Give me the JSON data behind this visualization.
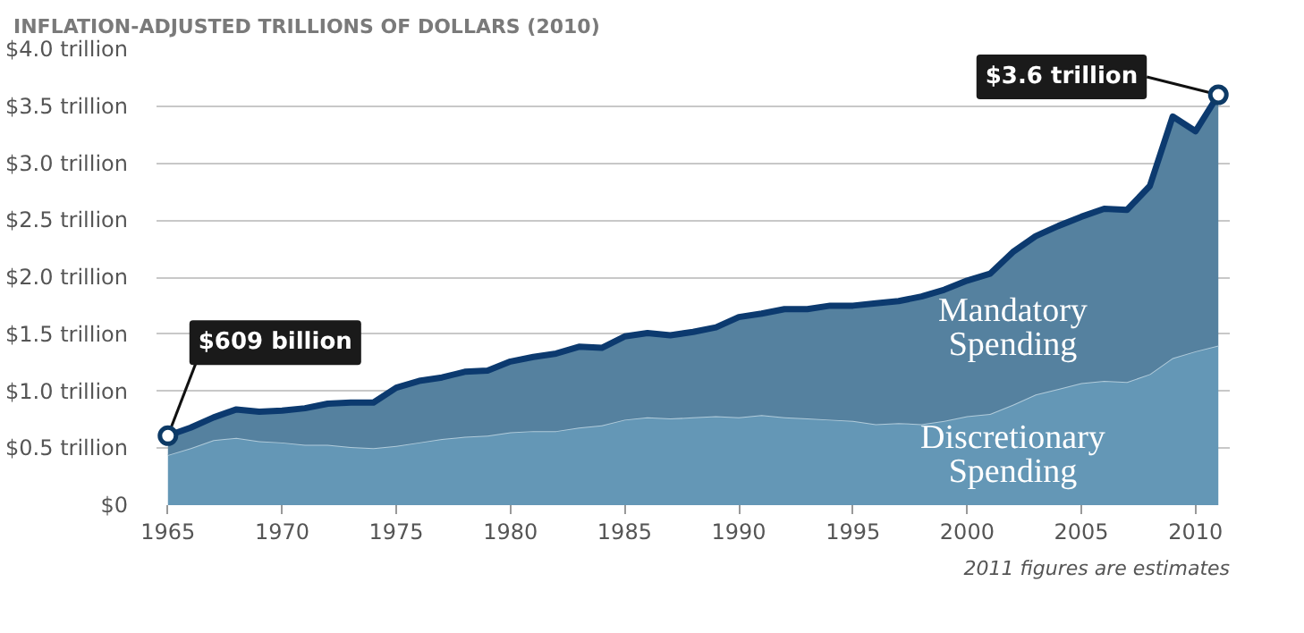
{
  "chart_data": {
    "type": "area",
    "stacked": true,
    "title": "INFLATION-ADJUSTED TRILLIONS OF DOLLARS (2010)",
    "x": [
      1965,
      1966,
      1967,
      1968,
      1969,
      1970,
      1971,
      1972,
      1973,
      1974,
      1975,
      1976,
      1977,
      1978,
      1979,
      1980,
      1981,
      1982,
      1983,
      1984,
      1985,
      1986,
      1987,
      1988,
      1989,
      1990,
      1991,
      1992,
      1993,
      1994,
      1995,
      1996,
      1997,
      1998,
      1999,
      2000,
      2001,
      2002,
      2003,
      2004,
      2005,
      2006,
      2007,
      2008,
      2009,
      2010,
      2011
    ],
    "series": [
      {
        "name": "Discretionary\nSpending",
        "color": "#6497b6",
        "values": [
          0.44,
          0.5,
          0.57,
          0.59,
          0.56,
          0.55,
          0.53,
          0.53,
          0.51,
          0.5,
          0.52,
          0.55,
          0.58,
          0.6,
          0.61,
          0.64,
          0.65,
          0.65,
          0.68,
          0.7,
          0.75,
          0.77,
          0.76,
          0.77,
          0.78,
          0.77,
          0.79,
          0.77,
          0.76,
          0.75,
          0.74,
          0.71,
          0.72,
          0.71,
          0.74,
          0.78,
          0.8,
          0.88,
          0.97,
          1.02,
          1.07,
          1.09,
          1.08,
          1.15,
          1.29,
          1.35,
          1.4
        ]
      },
      {
        "name": "Mandatory\nSpending",
        "color": "#55819f",
        "values": [
          0.17,
          0.18,
          0.2,
          0.25,
          0.26,
          0.28,
          0.32,
          0.36,
          0.39,
          0.4,
          0.51,
          0.54,
          0.54,
          0.57,
          0.57,
          0.62,
          0.65,
          0.68,
          0.71,
          0.68,
          0.73,
          0.74,
          0.73,
          0.75,
          0.78,
          0.88,
          0.89,
          0.95,
          0.96,
          1.0,
          1.01,
          1.06,
          1.07,
          1.12,
          1.15,
          1.19,
          1.23,
          1.34,
          1.39,
          1.43,
          1.46,
          1.51,
          1.51,
          1.65,
          2.12,
          1.93,
          2.2
        ]
      }
    ],
    "xlim": [
      1964.5,
      2011.5
    ],
    "xticks": [
      1965,
      1970,
      1975,
      1980,
      1985,
      1990,
      1995,
      2000,
      2005,
      2010
    ],
    "ylim": [
      0,
      4.0
    ],
    "yticks": [
      {
        "value": 0,
        "label": "$0"
      },
      {
        "value": 0.5,
        "label": "$0.5 trillion"
      },
      {
        "value": 1.0,
        "label": "$1.0 trillion"
      },
      {
        "value": 1.5,
        "label": "$1.5 trillion"
      },
      {
        "value": 2.0,
        "label": "$2.0 trillion"
      },
      {
        "value": 2.5,
        "label": "$2.5 trillion"
      },
      {
        "value": 3.0,
        "label": "$3.0 trillion"
      },
      {
        "value": 3.5,
        "label": "$3.5 trillion"
      },
      {
        "value": 4.0,
        "label": "$4.0 trillion"
      }
    ],
    "grid": "y",
    "annotations": [
      {
        "text": "$609 billion",
        "x": 1965,
        "y": 0.609
      },
      {
        "text": "$3.6 trillion",
        "x": 2011,
        "y": 3.6
      },
      "2011 figures are estimates"
    ]
  }
}
